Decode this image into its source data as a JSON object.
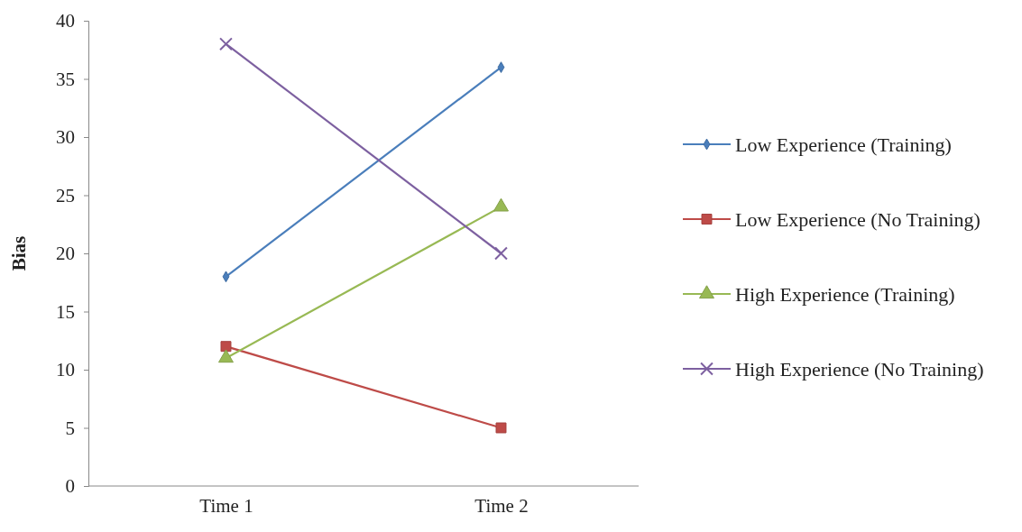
{
  "chart_data": {
    "type": "line",
    "ylabel": "Bias",
    "categories": [
      "Time 1",
      "Time 2"
    ],
    "ylim": [
      0,
      40
    ],
    "yticks": [
      0,
      5,
      10,
      15,
      20,
      25,
      30,
      35,
      40
    ],
    "grid": false,
    "legend": "right",
    "series": [
      {
        "name": "Low Experience (Training)",
        "color": "#4a7ebb",
        "marker": "diamond",
        "values": [
          18,
          36
        ]
      },
      {
        "name": "Low Experience (No Training)",
        "color": "#be4b48",
        "marker": "square",
        "values": [
          12,
          5
        ]
      },
      {
        "name": "High Experience (Training)",
        "color": "#98b954",
        "marker": "triangle",
        "values": [
          11,
          24
        ]
      },
      {
        "name": "High Experience (No Training)",
        "color": "#7d60a0",
        "marker": "cross",
        "values": [
          38,
          20
        ]
      }
    ]
  }
}
